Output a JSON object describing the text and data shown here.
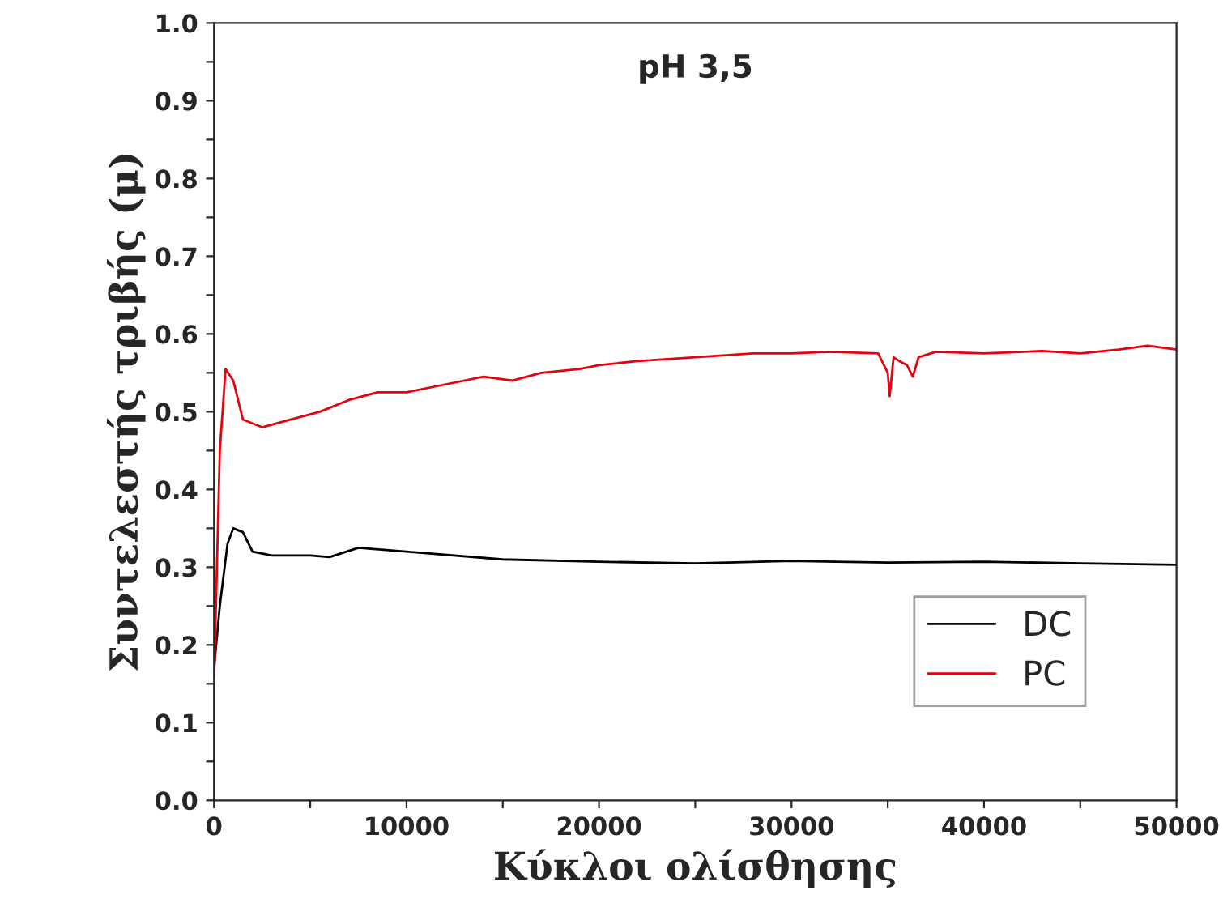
{
  "chart_data": {
    "type": "line",
    "title": "pH 3,5",
    "xlabel": "Κύκλοι ολίσθησης",
    "ylabel": "Συντελεστής τριβής (μ)",
    "xlim": [
      0,
      50000
    ],
    "ylim": [
      0,
      1.0
    ],
    "xticks": [
      0,
      {
        "value": 5000,
        "label": null
      },
      10000,
      {
        "value": 15000,
        "label": null
      },
      20000,
      {
        "value": 25000,
        "label": null
      },
      30000,
      {
        "value": 35000,
        "label": null
      },
      40000,
      {
        "value": 45000,
        "label": null
      },
      50000
    ],
    "yticks": [
      {
        "value": 0,
        "label": "0.0"
      },
      {
        "value": 0.05,
        "label": null
      },
      0.1,
      {
        "value": 0.15,
        "label": null
      },
      0.2,
      {
        "value": 0.25,
        "label": null
      },
      0.3,
      {
        "value": 0.35,
        "label": null
      },
      0.4,
      {
        "value": 0.45,
        "label": null
      },
      0.5,
      {
        "value": 0.55,
        "label": null
      },
      0.6,
      {
        "value": 0.65,
        "label": null
      },
      0.7,
      {
        "value": 0.75,
        "label": null
      },
      0.8,
      {
        "value": 0.85,
        "label": null
      },
      0.9,
      {
        "value": 0.95,
        "label": null
      },
      {
        "value": 1.0,
        "label": "1.0"
      }
    ],
    "legend": "bottom right",
    "grid": false,
    "series": [
      {
        "name": "DC",
        "color": "#000000",
        "x": [
          0,
          300,
          700,
          1000,
          1500,
          2000,
          3000,
          5000,
          6000,
          7500,
          10000,
          15000,
          20000,
          25000,
          30000,
          35000,
          40000,
          45000,
          50000
        ],
        "values": [
          0.17,
          0.25,
          0.33,
          0.35,
          0.345,
          0.32,
          0.315,
          0.315,
          0.313,
          0.325,
          0.32,
          0.31,
          0.307,
          0.305,
          0.308,
          0.306,
          0.307,
          0.305,
          0.303
        ]
      },
      {
        "name": "PC",
        "color": "#e8000b",
        "x": [
          0,
          300,
          600,
          1000,
          1500,
          2500,
          4000,
          5500,
          7000,
          8500,
          10000,
          12000,
          14000,
          15500,
          17000,
          19000,
          20000,
          22000,
          25000,
          28000,
          30000,
          32000,
          34500,
          35000,
          35100,
          35300,
          35600,
          36000,
          36300,
          36600,
          37500,
          40000,
          43000,
          45000,
          47000,
          48500,
          50000
        ],
        "values": [
          0.15,
          0.45,
          0.555,
          0.54,
          0.49,
          0.48,
          0.49,
          0.5,
          0.515,
          0.525,
          0.525,
          0.535,
          0.545,
          0.54,
          0.55,
          0.555,
          0.56,
          0.565,
          0.57,
          0.575,
          0.575,
          0.577,
          0.575,
          0.55,
          0.52,
          0.57,
          0.565,
          0.56,
          0.545,
          0.57,
          0.577,
          0.575,
          0.578,
          0.575,
          0.58,
          0.585,
          0.58
        ]
      }
    ]
  }
}
